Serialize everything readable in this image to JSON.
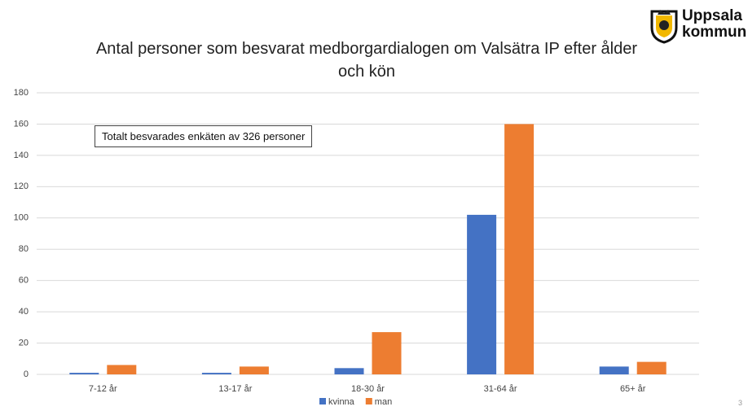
{
  "logo": {
    "line1": "Uppsala",
    "line2": "kommun"
  },
  "page_number": "3",
  "chart_data": {
    "type": "bar",
    "title": "Antal personer som besvarat medborgardialogen om Valsätra IP efter ålder och kön",
    "annotation": "Totalt besvarades enkäten av 326 personer",
    "categories": [
      "7-12 år",
      "13-17 år",
      "18-30 år",
      "31-64 år",
      "65+ år"
    ],
    "series": [
      {
        "name": "kvinna",
        "color": "#4472c4",
        "values": [
          1,
          1,
          4,
          102,
          5
        ]
      },
      {
        "name": "man",
        "color": "#ed7d31",
        "values": [
          6,
          5,
          27,
          160,
          8
        ]
      }
    ],
    "ylim": [
      0,
      180
    ],
    "yticks": [
      0,
      20,
      40,
      60,
      80,
      100,
      120,
      140,
      160,
      180
    ],
    "grid": true,
    "legend": "bottom"
  }
}
